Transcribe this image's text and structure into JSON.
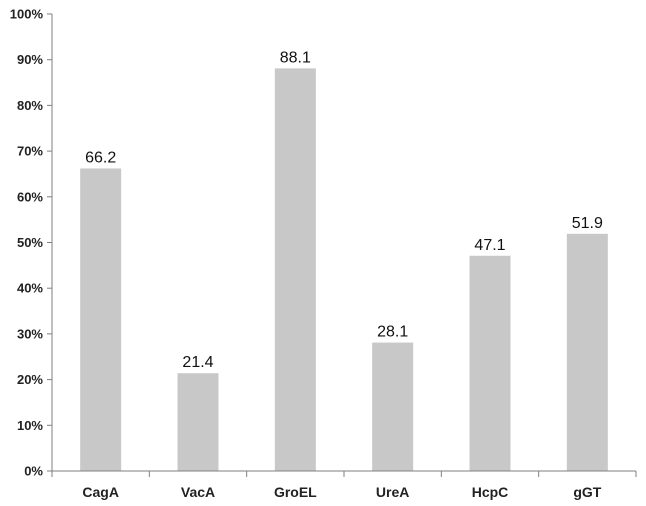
{
  "chart_data": {
    "type": "bar",
    "categories": [
      "CagA",
      "VacA",
      "GroEL",
      "UreA",
      "HcpC",
      "gGT"
    ],
    "values": [
      66.2,
      21.4,
      88.1,
      28.1,
      47.1,
      51.9
    ],
    "data_labels": [
      "66.2",
      "21.4",
      "88.1",
      "28.1",
      "47.1",
      "51.9"
    ],
    "title": "",
    "xlabel": "",
    "ylabel": "",
    "ylim": [
      0,
      100
    ],
    "y_ticks": [
      0,
      10,
      20,
      30,
      40,
      50,
      60,
      70,
      80,
      90,
      100
    ],
    "y_tick_labels": [
      "0%",
      "10%",
      "20%",
      "30%",
      "40%",
      "50%",
      "60%",
      "70%",
      "80%",
      "90%",
      "100%"
    ],
    "grid": false,
    "legend": "none",
    "bar_color": "#c8c8c8",
    "axis_color": "#7f7f7f"
  }
}
